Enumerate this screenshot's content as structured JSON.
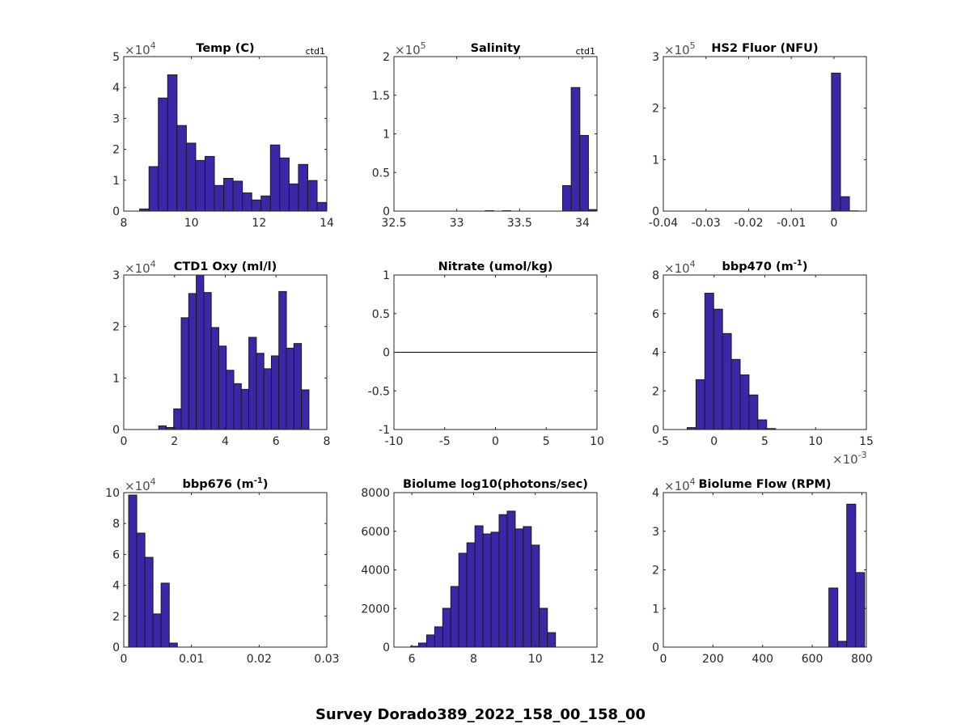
{
  "suptitle": "Survey Dorado389_2022_158_00_158_00",
  "colors": {
    "bar_fill": "#3c27a8",
    "bar_edge": "#1a1a1a",
    "axis": "#262626"
  },
  "chart_data": [
    {
      "type": "bar",
      "title": "Temp (C)",
      "title_sup": "",
      "title_tail": "",
      "note": "ctd1",
      "xlim": [
        8,
        14
      ],
      "ylim": [
        0,
        5
      ],
      "xticks": [
        8,
        10,
        12,
        14
      ],
      "xtick_labels": [
        "8",
        "10",
        "12",
        "14"
      ],
      "yticks": [
        0,
        1,
        2,
        3,
        4,
        5
      ],
      "ytick_labels": [
        "0",
        "1",
        "2",
        "3",
        "4",
        "5"
      ],
      "y_exponent": "4",
      "x_exponent": "",
      "bin_start": 8.47,
      "bin_width": 0.276,
      "values": [
        0.07,
        1.44,
        3.66,
        4.41,
        2.77,
        2.2,
        1.64,
        1.77,
        0.83,
        1.06,
        0.97,
        0.59,
        0.36,
        0.49,
        2.14,
        1.72,
        0.88,
        1.51,
        0.99,
        0.28
      ]
    },
    {
      "type": "bar",
      "title": "Salinity",
      "title_sup": "",
      "title_tail": "",
      "note": "ctd1",
      "xlim": [
        32.5,
        34.116
      ],
      "ylim": [
        0,
        2
      ],
      "xticks": [
        32.5,
        33,
        33.5,
        34
      ],
      "xtick_labels": [
        "32.5",
        "33",
        "33.5",
        "34"
      ],
      "yticks": [
        0,
        0.5,
        1,
        1.5,
        2
      ],
      "ytick_labels": [
        "0",
        "0.5",
        "1",
        "1.5",
        "2"
      ],
      "y_exponent": "5",
      "x_exponent": "",
      "bin_start": 33.226,
      "bin_width": 0.0685,
      "values": [
        0.005,
        0,
        0.005,
        0,
        0,
        0,
        0,
        0,
        0,
        0.33,
        1.6,
        0.98,
        0.02
      ]
    },
    {
      "type": "bar",
      "title": "HS2 Fluor (NFU)",
      "title_sup": "",
      "title_tail": "",
      "note": "",
      "xlim": [
        -0.04,
        0.0076
      ],
      "ylim": [
        0,
        3
      ],
      "xticks": [
        -0.04,
        -0.03,
        -0.02,
        -0.01,
        0
      ],
      "xtick_labels": [
        "-0.04",
        "-0.03",
        "-0.02",
        "-0.01",
        "0"
      ],
      "yticks": [
        0,
        1,
        2,
        3
      ],
      "ytick_labels": [
        "0",
        "1",
        "2",
        "3"
      ],
      "y_exponent": "5",
      "x_exponent": "",
      "bin_start": -0.00057,
      "bin_width": 0.0021,
      "values": [
        2.68,
        0.28,
        0.005
      ]
    },
    {
      "type": "bar",
      "title": "CTD1 Oxy (ml/l)",
      "title_sup": "",
      "title_tail": "",
      "note": "",
      "xlim": [
        0,
        8
      ],
      "ylim": [
        0,
        3
      ],
      "xticks": [
        0,
        2,
        4,
        6,
        8
      ],
      "xtick_labels": [
        "0",
        "2",
        "4",
        "6",
        "8"
      ],
      "yticks": [
        0,
        1,
        2,
        3
      ],
      "ytick_labels": [
        "0",
        "1",
        "2",
        "3"
      ],
      "y_exponent": "4",
      "x_exponent": "",
      "bin_start": 1.376,
      "bin_width": 0.296,
      "values": [
        0.07,
        0.04,
        0.4,
        2.17,
        2.64,
        3.0,
        2.66,
        1.98,
        1.62,
        1.15,
        0.89,
        0.78,
        1.79,
        1.48,
        1.18,
        1.43,
        2.68,
        1.58,
        1.67,
        0.77
      ]
    },
    {
      "type": "line",
      "title": "Nitrate (umol/kg)",
      "title_sup": "",
      "title_tail": "",
      "note": "",
      "xlim": [
        -10,
        10
      ],
      "ylim": [
        -1,
        1
      ],
      "xticks": [
        -10,
        -5,
        0,
        5,
        10
      ],
      "xtick_labels": [
        "-10",
        "-5",
        "0",
        "5",
        "10"
      ],
      "yticks": [
        -1,
        -0.5,
        0,
        0.5,
        1
      ],
      "ytick_labels": [
        "-1",
        "-0.5",
        "0",
        "0.5",
        "1"
      ],
      "y_exponent": "",
      "x_exponent": "",
      "line": {
        "x": [
          -10,
          10
        ],
        "y": [
          0,
          0
        ]
      }
    },
    {
      "type": "bar",
      "title": "bbp470 (m",
      "title_sup": "-1",
      "title_tail": ")",
      "note": "",
      "xlim": [
        -5,
        15
      ],
      "ylim": [
        0,
        8
      ],
      "xticks": [
        -5,
        0,
        5,
        10,
        15
      ],
      "xtick_labels": [
        "-5",
        "0",
        "5",
        "10",
        "15"
      ],
      "yticks": [
        0,
        2,
        4,
        6,
        8
      ],
      "ytick_labels": [
        "0",
        "2",
        "4",
        "6",
        "8"
      ],
      "y_exponent": "4",
      "x_exponent": "-3",
      "bin_start": -2.65,
      "bin_width": 0.87,
      "values": [
        0.1,
        2.58,
        7.06,
        6.23,
        4.97,
        3.63,
        2.83,
        1.79,
        0.5,
        0.05
      ]
    },
    {
      "type": "bar",
      "title": "bbp676 (m",
      "title_sup": "-1",
      "title_tail": ")",
      "note": "",
      "xlim": [
        0,
        0.03
      ],
      "ylim": [
        0,
        10
      ],
      "xticks": [
        0,
        0.01,
        0.02,
        0.03
      ],
      "xtick_labels": [
        "0",
        "0.01",
        "0.02",
        "0.03"
      ],
      "yticks": [
        0,
        2,
        4,
        6,
        8,
        10
      ],
      "ytick_labels": [
        "0",
        "2",
        "4",
        "6",
        "8",
        "10"
      ],
      "y_exponent": "4",
      "x_exponent": "",
      "bin_start": 0.00072,
      "bin_width": 0.0012,
      "values": [
        9.84,
        7.38,
        5.81,
        2.15,
        4.14,
        0.26
      ]
    },
    {
      "type": "bar",
      "title": "Biolume log10(photons/sec)",
      "title_sup": "",
      "title_tail": "",
      "note": "",
      "xlim": [
        5.42,
        12
      ],
      "ylim": [
        0,
        8000
      ],
      "xticks": [
        6,
        8,
        10,
        12
      ],
      "xtick_labels": [
        "6",
        "8",
        "10",
        "12"
      ],
      "yticks": [
        0,
        2000,
        4000,
        6000,
        8000
      ],
      "ytick_labels": [
        "0",
        "2000",
        "4000",
        "6000",
        "8000"
      ],
      "y_exponent": "",
      "x_exponent": "",
      "bin_start": 5.957,
      "bin_width": 0.261,
      "values": [
        40,
        210,
        630,
        1050,
        2010,
        3140,
        4860,
        5400,
        6280,
        5860,
        5950,
        6860,
        7040,
        6120,
        6240,
        5280,
        2010,
        750
      ]
    },
    {
      "type": "bar",
      "title": "Biolume Flow (RPM)",
      "title_sup": "",
      "title_tail": "",
      "note": "",
      "xlim": [
        0,
        818
      ],
      "ylim": [
        0,
        4
      ],
      "xticks": [
        0,
        200,
        400,
        600,
        800
      ],
      "xtick_labels": [
        "0",
        "200",
        "400",
        "600",
        "800"
      ],
      "yticks": [
        0,
        1,
        2,
        3,
        4
      ],
      "ytick_labels": [
        "0",
        "1",
        "2",
        "3",
        "4"
      ],
      "y_exponent": "4",
      "x_exponent": "",
      "bin_start": 667,
      "bin_width": 36,
      "values": [
        1.53,
        0.15,
        3.7,
        1.93
      ]
    }
  ]
}
